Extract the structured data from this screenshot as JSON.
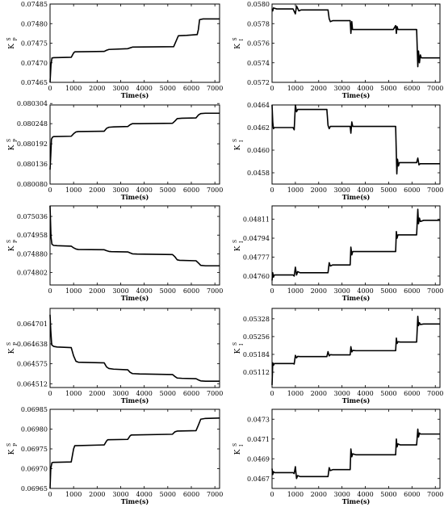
{
  "chart_data": [
    {
      "type": "line",
      "title": "",
      "xlabel": "Time(s)",
      "ylabel": {
        "main": "K",
        "sup": "S",
        "sub": "P"
      },
      "xlim": [
        0,
        7200
      ],
      "xticks": [
        0,
        1000,
        2000,
        3000,
        4000,
        5000,
        6000,
        7000
      ],
      "ylim": [
        0.07465,
        0.07485
      ],
      "yticks": [
        "0.07465",
        "0.07470",
        "0.07475",
        "0.07480",
        "0.07485"
      ],
      "series": [
        {
          "x": [
            0,
            40,
            80,
            150,
            900,
            1000,
            1050,
            2300,
            2400,
            2500,
            3300,
            3400,
            3500,
            5250,
            5350,
            5450,
            5800,
            6250,
            6300,
            6350,
            6500,
            7200
          ],
          "y": [
            0.07465,
            0.074695,
            0.074712,
            0.074713,
            0.074714,
            0.074725,
            0.074728,
            0.074729,
            0.074732,
            0.074734,
            0.074736,
            0.074738,
            0.07474,
            0.074741,
            0.074755,
            0.074769,
            0.07477,
            0.074772,
            0.074785,
            0.07481,
            0.074812,
            0.074812
          ]
        }
      ]
    },
    {
      "type": "line",
      "title": "",
      "xlabel": "Time(s)",
      "ylabel": {
        "main": "K",
        "sup": "S",
        "sub": "I"
      },
      "xlim": [
        0,
        7200
      ],
      "xticks": [
        0,
        1000,
        2000,
        3000,
        4000,
        5000,
        6000,
        7000
      ],
      "ylim": [
        0.0572,
        0.058
      ],
      "yticks": [
        "0.0572",
        "0.0574",
        "0.0576",
        "0.0578",
        "0.0580"
      ],
      "series": [
        {
          "x": [
            0,
            30,
            60,
            200,
            900,
            1000,
            1050,
            1150,
            1250,
            2400,
            2450,
            2500,
            2600,
            3350,
            3380,
            3420,
            3450,
            3600,
            5200,
            5300,
            5330,
            5360,
            5400,
            6200,
            6250,
            6280,
            6320,
            6360,
            6400,
            6450,
            7200
          ],
          "y": [
            0.05795,
            0.05793,
            0.05796,
            0.05795,
            0.05795,
            0.0579,
            0.05798,
            0.05793,
            0.05794,
            0.05794,
            0.05785,
            0.05782,
            0.05783,
            0.05783,
            0.0577,
            0.05782,
            0.05774,
            0.05774,
            0.05774,
            0.05778,
            0.0577,
            0.05777,
            0.05774,
            0.05774,
            0.05736,
            0.05752,
            0.0574,
            0.05748,
            0.05745,
            0.05745,
            0.05745
          ]
        }
      ]
    },
    {
      "type": "line",
      "title": "",
      "xlabel": "Time(s)",
      "ylabel": {
        "main": "K",
        "sup": "S",
        "sub": "P"
      },
      "xlim": [
        0,
        7200
      ],
      "xticks": [
        0,
        1000,
        2000,
        3000,
        4000,
        5000,
        6000,
        7000
      ],
      "ylim": [
        0.08008,
        0.0803
      ],
      "yticks": [
        "0.080080",
        "0.080136",
        "0.080192",
        "0.080248",
        "0.080304"
      ],
      "series": [
        {
          "x": [
            0,
            30,
            60,
            100,
            150,
            900,
            1000,
            1100,
            1200,
            2300,
            2400,
            2500,
            2700,
            3300,
            3400,
            3500,
            3800,
            5200,
            5300,
            5400,
            5600,
            6200,
            6300,
            6400,
            6600,
            7200
          ],
          "y": [
            0.08012,
            0.08016,
            0.080205,
            0.08021,
            0.080212,
            0.080213,
            0.08022,
            0.080225,
            0.080226,
            0.080227,
            0.080235,
            0.080238,
            0.080239,
            0.08024,
            0.080245,
            0.080248,
            0.080248,
            0.080249,
            0.080255,
            0.080262,
            0.080263,
            0.080264,
            0.080272,
            0.080276,
            0.080277,
            0.080277
          ]
        }
      ]
    },
    {
      "type": "line",
      "title": "",
      "xlabel": "Time(s)",
      "ylabel": {
        "main": "K",
        "sup": "S",
        "sub": "I"
      },
      "xlim": [
        0,
        7200
      ],
      "xticks": [
        0,
        1000,
        2000,
        3000,
        4000,
        5000,
        6000,
        7000
      ],
      "ylim": [
        0.0457,
        0.0464
      ],
      "yticks": [
        "0.0458",
        "0.0460",
        "0.0462",
        "0.0464"
      ],
      "series": [
        {
          "x": [
            0,
            30,
            60,
            100,
            200,
            900,
            950,
            1000,
            1050,
            1100,
            1200,
            2350,
            2400,
            2450,
            2500,
            2600,
            3350,
            3380,
            3420,
            3460,
            3600,
            5300,
            5350,
            5380,
            5420,
            5460,
            5600,
            6200,
            6250,
            6300,
            6350,
            7200
          ],
          "y": [
            0.04641,
            0.04625,
            0.04619,
            0.0462,
            0.0462,
            0.0462,
            0.04618,
            0.0464,
            0.04634,
            0.04636,
            0.04636,
            0.04636,
            0.04622,
            0.04619,
            0.04621,
            0.04621,
            0.04621,
            0.04615,
            0.04625,
            0.04621,
            0.04621,
            0.04621,
            0.04579,
            0.04592,
            0.04586,
            0.04589,
            0.04589,
            0.04589,
            0.04593,
            0.04587,
            0.04588,
            0.04588
          ]
        }
      ]
    },
    {
      "type": "line",
      "title": "",
      "xlabel": "Time(s)",
      "ylabel": {
        "main": "K",
        "sup": "S",
        "sub": "P"
      },
      "xlim": [
        0,
        7200
      ],
      "xticks": [
        0,
        1000,
        2000,
        3000,
        4000,
        5000,
        6000,
        7000
      ],
      "ylim": [
        0.07475,
        0.07508
      ],
      "yticks": [
        "0.074802",
        "0.074880",
        "0.074958",
        "0.075036"
      ],
      "series": [
        {
          "x": [
            0,
            40,
            80,
            150,
            300,
            900,
            1000,
            1100,
            1200,
            2300,
            2400,
            2500,
            2600,
            3300,
            3400,
            3500,
            3700,
            5200,
            5300,
            5400,
            5500,
            6200,
            6300,
            6400,
            6600,
            7200
          ],
          "y": [
            0.07508,
            0.07495,
            0.07492,
            0.074915,
            0.074914,
            0.074912,
            0.074905,
            0.0749,
            0.074898,
            0.074897,
            0.074893,
            0.07489,
            0.074889,
            0.074888,
            0.074884,
            0.07488,
            0.074879,
            0.074877,
            0.074868,
            0.074855,
            0.074853,
            0.074851,
            0.074842,
            0.074832,
            0.07483,
            0.07483
          ]
        }
      ]
    },
    {
      "type": "line",
      "title": "",
      "xlabel": "Time(s)",
      "ylabel": {
        "main": "K",
        "sup": "S",
        "sub": "I"
      },
      "xlim": [
        0,
        7200
      ],
      "xticks": [
        0,
        1000,
        2000,
        3000,
        4000,
        5000,
        6000,
        7000
      ],
      "ylim": [
        0.04752,
        0.04823
      ],
      "yticks": [
        "0.04760",
        "0.04777",
        "0.04794",
        "0.04811"
      ],
      "series": [
        {
          "x": [
            0,
            30,
            60,
            100,
            200,
            900,
            950,
            1000,
            1050,
            1100,
            1200,
            2400,
            2450,
            2500,
            2600,
            3350,
            3380,
            3420,
            3460,
            3600,
            5300,
            5330,
            5360,
            5400,
            5500,
            6200,
            6250,
            6280,
            6320,
            6360,
            6500,
            7200
          ],
          "y": [
            0.04756,
            0.04763,
            0.04759,
            0.04761,
            0.04761,
            0.04761,
            0.0476,
            0.04768,
            0.04761,
            0.04764,
            0.04763,
            0.04763,
            0.04772,
            0.04769,
            0.0477,
            0.0477,
            0.04786,
            0.04779,
            0.04782,
            0.04782,
            0.04782,
            0.048,
            0.04794,
            0.04797,
            0.04797,
            0.04797,
            0.0482,
            0.04807,
            0.04812,
            0.04809,
            0.0481,
            0.0481
          ]
        }
      ]
    },
    {
      "type": "line",
      "title": "",
      "xlabel": "Time(s)",
      "ylabel": {
        "main": "K",
        "sup": "S",
        "sub": "P"
      },
      "xlim": [
        0,
        7200
      ],
      "xticks": [
        0,
        1000,
        2000,
        3000,
        4000,
        5000,
        6000,
        7000
      ],
      "ylim": [
        0.0645,
        0.06475
      ],
      "yticks": [
        "0.064512",
        "0.064575",
        "0.064638",
        "0.064701"
      ],
      "series": [
        {
          "x": [
            0,
            30,
            70,
            150,
            300,
            900,
            1000,
            1100,
            1200,
            2300,
            2400,
            2500,
            2700,
            3300,
            3400,
            3500,
            3800,
            5200,
            5300,
            5400,
            5600,
            6200,
            6300,
            6400,
            6600,
            7200
          ],
          "y": [
            0.06473,
            0.06468,
            0.064635,
            0.06463,
            0.064628,
            0.064626,
            0.0646,
            0.064583,
            0.06458,
            0.064578,
            0.064565,
            0.06456,
            0.064558,
            0.064556,
            0.064548,
            0.064544,
            0.064543,
            0.064541,
            0.064535,
            0.06453,
            0.064529,
            0.064528,
            0.064524,
            0.064521,
            0.06452,
            0.06452
          ]
        }
      ]
    },
    {
      "type": "line",
      "title": "",
      "xlabel": "Time(s)",
      "ylabel": {
        "main": "K",
        "sup": "S",
        "sub": "I"
      },
      "xlim": [
        0,
        7200
      ],
      "xticks": [
        0,
        1000,
        2000,
        3000,
        4000,
        5000,
        6000,
        7000
      ],
      "ylim": [
        0.0505,
        0.0537
      ],
      "yticks": [
        "0.05112",
        "0.05184",
        "0.05256",
        "0.05328"
      ],
      "series": [
        {
          "x": [
            0,
            30,
            60,
            100,
            200,
            900,
            950,
            1000,
            1050,
            1100,
            1200,
            2350,
            2400,
            2450,
            2500,
            2600,
            3350,
            3380,
            3420,
            3460,
            3600,
            5300,
            5330,
            5360,
            5400,
            5500,
            6200,
            6250,
            6280,
            6320,
            6360,
            6500,
            7200
          ],
          "y": [
            0.0506,
            0.0515,
            0.0514,
            0.05147,
            0.05147,
            0.05147,
            0.05145,
            0.0518,
            0.0517,
            0.05176,
            0.05175,
            0.05175,
            0.05195,
            0.05178,
            0.05183,
            0.05182,
            0.05182,
            0.05215,
            0.05194,
            0.052,
            0.05199,
            0.05199,
            0.0525,
            0.05228,
            0.05235,
            0.05234,
            0.05234,
            0.05338,
            0.053,
            0.05312,
            0.05305,
            0.05307,
            0.05307
          ]
        }
      ]
    },
    {
      "type": "line",
      "title": "",
      "xlabel": "Time(s)",
      "ylabel": {
        "main": "K",
        "sup": "S",
        "sub": "P"
      },
      "xlim": [
        0,
        7200
      ],
      "xticks": [
        0,
        1000,
        2000,
        3000,
        4000,
        5000,
        6000,
        7000
      ],
      "ylim": [
        0.06965,
        0.06985
      ],
      "yticks": [
        "0.06965",
        "0.06970",
        "0.06975",
        "0.06980",
        "0.06985"
      ],
      "series": [
        {
          "x": [
            0,
            30,
            80,
            150,
            900,
            1000,
            1050,
            2300,
            2400,
            2450,
            3300,
            3400,
            3450,
            5200,
            5300,
            5400,
            6200,
            6300,
            6400,
            6600,
            7200
          ],
          "y": [
            0.06965,
            0.0697,
            0.069715,
            0.069716,
            0.069717,
            0.06975,
            0.069758,
            0.06976,
            0.06977,
            0.069773,
            0.069774,
            0.069783,
            0.069785,
            0.069787,
            0.069793,
            0.069795,
            0.069796,
            0.06981,
            0.069825,
            0.069827,
            0.069828
          ]
        }
      ]
    },
    {
      "type": "line",
      "title": "",
      "xlabel": "Time(s)",
      "ylabel": {
        "main": "K",
        "sup": "S",
        "sub": "I"
      },
      "xlim": [
        0,
        7200
      ],
      "xticks": [
        0,
        1000,
        2000,
        3000,
        4000,
        5000,
        6000,
        7000
      ],
      "ylim": [
        0.0466,
        0.0474
      ],
      "yticks": [
        "0.0467",
        "0.0469",
        "0.0471",
        "0.0473"
      ],
      "series": [
        {
          "x": [
            0,
            30,
            60,
            100,
            200,
            900,
            950,
            1000,
            1050,
            1100,
            1200,
            2400,
            2450,
            2500,
            2600,
            3350,
            3380,
            3420,
            3460,
            3600,
            5300,
            5330,
            5360,
            5400,
            5500,
            6200,
            6250,
            6280,
            6320,
            6360,
            6500,
            7200
          ],
          "y": [
            0.0468,
            0.04674,
            0.04677,
            0.04676,
            0.04676,
            0.04676,
            0.04675,
            0.04682,
            0.0467,
            0.04673,
            0.04672,
            0.04672,
            0.04681,
            0.04678,
            0.04679,
            0.04679,
            0.047,
            0.04692,
            0.04695,
            0.04694,
            0.04694,
            0.0471,
            0.04702,
            0.04705,
            0.04704,
            0.04704,
            0.0472,
            0.04712,
            0.04716,
            0.04715,
            0.04715,
            0.04715
          ]
        }
      ]
    }
  ]
}
